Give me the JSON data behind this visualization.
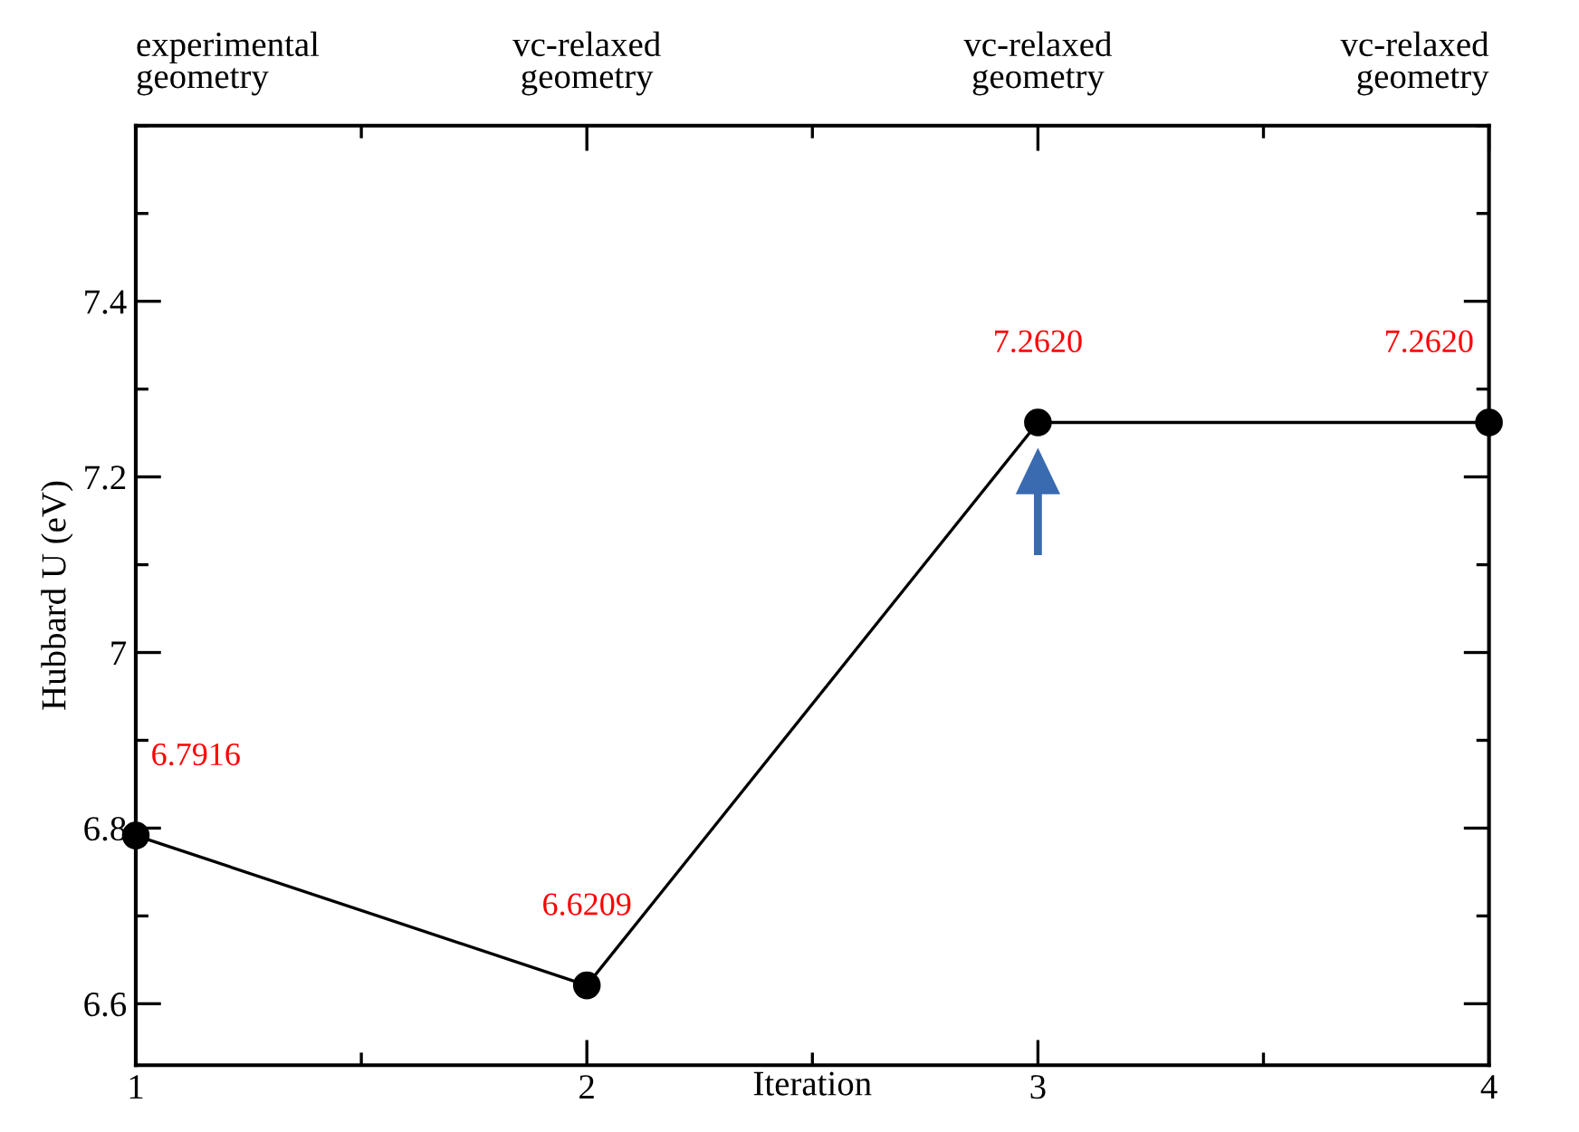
{
  "chart_data": {
    "type": "line",
    "xlabel": "Iteration",
    "ylabel": "Hubbard U (eV)",
    "x": [
      1,
      2,
      3,
      4
    ],
    "series": [
      {
        "color": "#000000",
        "values": [
          6.7916,
          6.6209,
          7.262,
          7.262
        ],
        "value_labels": [
          "6.7916",
          "6.6209",
          "7.2620",
          "7.2620"
        ]
      }
    ],
    "marker": "circle",
    "line_style": "solid",
    "grid": false,
    "legend": false,
    "xlim": [
      1,
      4
    ],
    "xticks": [
      1,
      2,
      3,
      4
    ],
    "ylim": [
      6.53,
      7.6
    ],
    "yticks": [
      6.6,
      6.8,
      {
        "value": 7.0,
        "label": "7"
      },
      7.2,
      7.4
    ],
    "annotations": [
      "experimental\ngeometry",
      "vc-relaxed\ngeometry",
      "vc-relaxed\ngeometry",
      "vc-relaxed\ngeometry"
    ]
  }
}
